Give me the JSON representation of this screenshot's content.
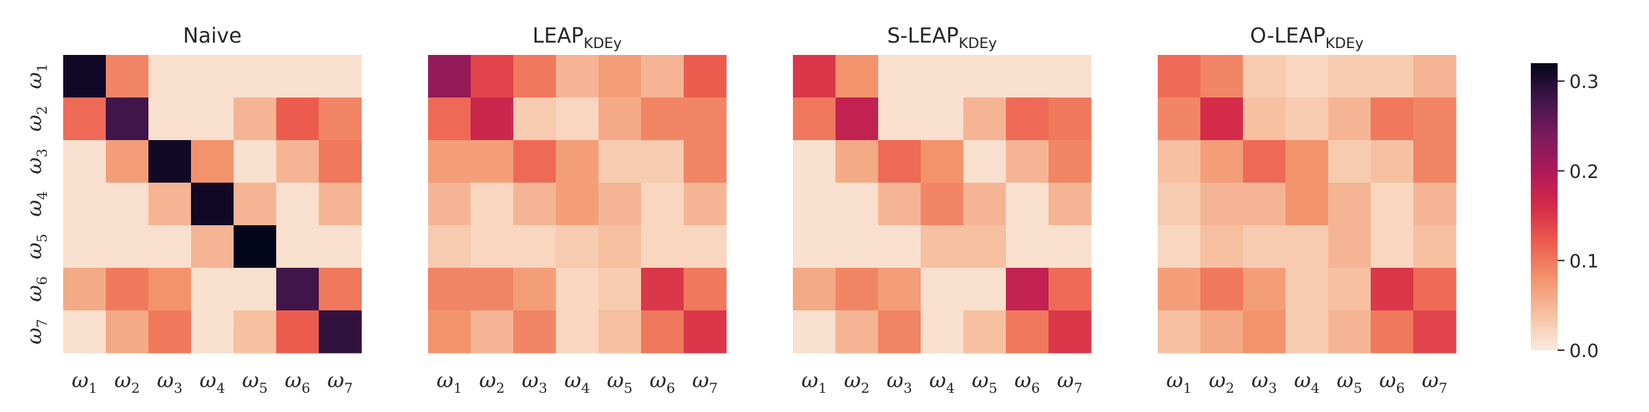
{
  "chart_data": {
    "type": "heatmap",
    "categories": [
      "ω1",
      "ω2",
      "ω3",
      "ω4",
      "ω5",
      "ω6",
      "ω7"
    ],
    "colorbar": {
      "range": [
        0.0,
        0.32
      ],
      "ticks": [
        0.0,
        0.1,
        0.2,
        0.3
      ],
      "tick_labels": [
        "0.0",
        "0.1",
        "0.2",
        "0.3"
      ]
    },
    "panels": [
      {
        "title": "Naive",
        "title_sub": "",
        "matrix": [
          [
            0.31,
            0.09,
            0.01,
            0.01,
            0.01,
            0.01,
            0.01
          ],
          [
            0.11,
            0.28,
            0.01,
            0.01,
            0.05,
            0.12,
            0.09
          ],
          [
            0.01,
            0.07,
            0.31,
            0.08,
            0.01,
            0.05,
            0.1
          ],
          [
            0.01,
            0.01,
            0.05,
            0.31,
            0.05,
            0.01,
            0.05
          ],
          [
            0.01,
            0.01,
            0.01,
            0.05,
            0.32,
            0.01,
            0.01
          ],
          [
            0.06,
            0.1,
            0.08,
            0.01,
            0.01,
            0.28,
            0.1
          ],
          [
            0.01,
            0.06,
            0.1,
            0.01,
            0.04,
            0.12,
            0.29
          ]
        ]
      },
      {
        "title": "LEAP",
        "title_sub": "KDEy",
        "matrix": [
          [
            0.22,
            0.14,
            0.1,
            0.05,
            0.07,
            0.05,
            0.12
          ],
          [
            0.11,
            0.17,
            0.03,
            0.02,
            0.06,
            0.09,
            0.09
          ],
          [
            0.07,
            0.07,
            0.11,
            0.07,
            0.03,
            0.03,
            0.09
          ],
          [
            0.05,
            0.02,
            0.05,
            0.07,
            0.05,
            0.02,
            0.05
          ],
          [
            0.03,
            0.02,
            0.02,
            0.03,
            0.04,
            0.02,
            0.02
          ],
          [
            0.09,
            0.09,
            0.07,
            0.02,
            0.03,
            0.15,
            0.1
          ],
          [
            0.08,
            0.05,
            0.09,
            0.02,
            0.04,
            0.1,
            0.15
          ]
        ]
      },
      {
        "title": "S-LEAP",
        "title_sub": "KDEy",
        "matrix": [
          [
            0.15,
            0.08,
            0.01,
            0.01,
            0.01,
            0.01,
            0.01
          ],
          [
            0.1,
            0.18,
            0.01,
            0.01,
            0.05,
            0.11,
            0.1
          ],
          [
            0.01,
            0.06,
            0.11,
            0.08,
            0.01,
            0.05,
            0.09
          ],
          [
            0.01,
            0.01,
            0.05,
            0.09,
            0.05,
            0.01,
            0.05
          ],
          [
            0.01,
            0.01,
            0.01,
            0.04,
            0.04,
            0.01,
            0.01
          ],
          [
            0.06,
            0.09,
            0.07,
            0.01,
            0.01,
            0.18,
            0.11
          ],
          [
            0.01,
            0.05,
            0.09,
            0.01,
            0.04,
            0.1,
            0.15
          ]
        ]
      },
      {
        "title": "O-LEAP",
        "title_sub": "KDEy",
        "matrix": [
          [
            0.11,
            0.09,
            0.03,
            0.02,
            0.03,
            0.03,
            0.05
          ],
          [
            0.09,
            0.16,
            0.04,
            0.03,
            0.05,
            0.1,
            0.09
          ],
          [
            0.04,
            0.07,
            0.11,
            0.08,
            0.03,
            0.04,
            0.09
          ],
          [
            0.03,
            0.05,
            0.05,
            0.08,
            0.05,
            0.02,
            0.05
          ],
          [
            0.02,
            0.04,
            0.03,
            0.03,
            0.05,
            0.02,
            0.04
          ],
          [
            0.07,
            0.1,
            0.07,
            0.03,
            0.04,
            0.15,
            0.11
          ],
          [
            0.04,
            0.06,
            0.08,
            0.03,
            0.05,
            0.1,
            0.14
          ]
        ]
      }
    ]
  }
}
